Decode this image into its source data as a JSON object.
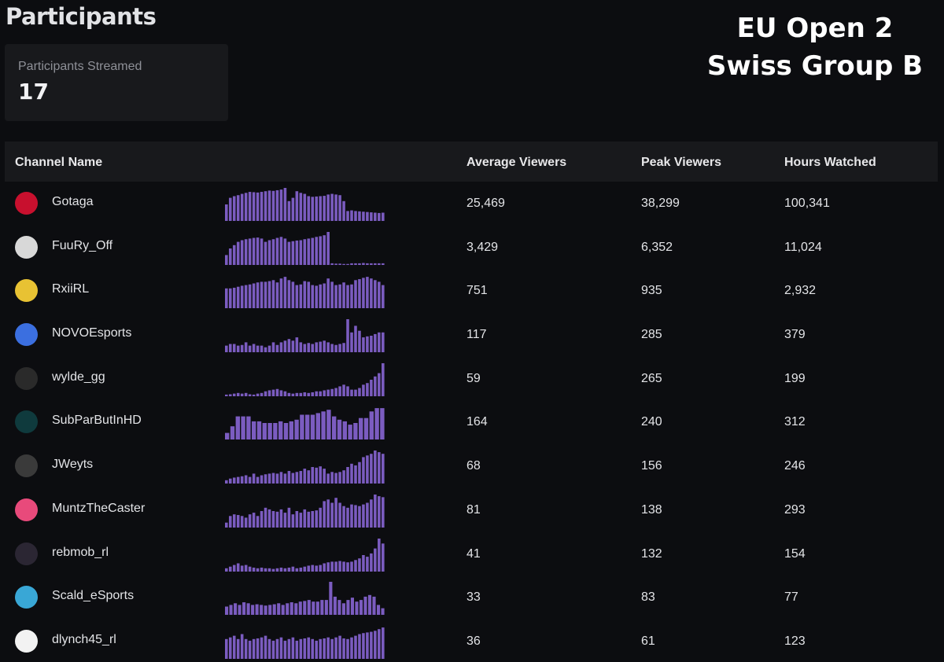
{
  "page_title": "Participants",
  "event": {
    "line1": "EU Open 2",
    "line2": "Swiss Group B"
  },
  "stat_card": {
    "label": "Participants Streamed",
    "value": "17"
  },
  "table": {
    "headers": {
      "channel": "Channel Name",
      "avg": "Average Viewers",
      "peak": "Peak Viewers",
      "hours": "Hours Watched"
    },
    "rows": [
      {
        "name": "Gotaga",
        "avg": "25,469",
        "peak": "38,299",
        "hours": "100,341",
        "avatar_color": "#c8102e",
        "trend": [
          0.5,
          0.7,
          0.75,
          0.78,
          0.82,
          0.85,
          0.88,
          0.87,
          0.86,
          0.88,
          0.9,
          0.92,
          0.91,
          0.93,
          0.95,
          1.0,
          0.6,
          0.7,
          0.9,
          0.85,
          0.82,
          0.75,
          0.73,
          0.74,
          0.75,
          0.76,
          0.8,
          0.82,
          0.8,
          0.78,
          0.6,
          0.3,
          0.32,
          0.3,
          0.29,
          0.28,
          0.27,
          0.26,
          0.25,
          0.24,
          0.25
        ]
      },
      {
        "name": "FuuRy_Off",
        "avg": "3,429",
        "peak": "6,352",
        "hours": "11,024",
        "avatar_color": "#d8d8d8",
        "trend": [
          0.3,
          0.5,
          0.6,
          0.7,
          0.75,
          0.78,
          0.8,
          0.82,
          0.83,
          0.8,
          0.7,
          0.75,
          0.78,
          0.82,
          0.85,
          0.8,
          0.7,
          0.72,
          0.74,
          0.75,
          0.78,
          0.8,
          0.82,
          0.85,
          0.87,
          0.9,
          1.0,
          0.05,
          0.04,
          0.04,
          0.03,
          0.03,
          0.05,
          0.05,
          0.05,
          0.06,
          0.05,
          0.05,
          0.05,
          0.05,
          0.05
        ]
      },
      {
        "name": "RxiiRL",
        "avg": "751",
        "peak": "935",
        "hours": "2,932",
        "avatar_color": "#e8c233",
        "trend": [
          0.6,
          0.6,
          0.62,
          0.65,
          0.68,
          0.7,
          0.72,
          0.75,
          0.78,
          0.8,
          0.8,
          0.82,
          0.85,
          0.78,
          0.9,
          0.95,
          0.85,
          0.8,
          0.7,
          0.72,
          0.82,
          0.8,
          0.7,
          0.68,
          0.72,
          0.75,
          0.9,
          0.8,
          0.7,
          0.72,
          0.78,
          0.7,
          0.72,
          0.85,
          0.88,
          0.92,
          0.95,
          0.9,
          0.85,
          0.8,
          0.7
        ]
      },
      {
        "name": "NOVOEsports",
        "avg": "117",
        "peak": "285",
        "hours": "379",
        "avatar_color": "#3b6fe0",
        "trend": [
          0.2,
          0.25,
          0.25,
          0.2,
          0.22,
          0.3,
          0.2,
          0.25,
          0.2,
          0.2,
          0.15,
          0.2,
          0.3,
          0.22,
          0.3,
          0.35,
          0.4,
          0.35,
          0.45,
          0.3,
          0.25,
          0.28,
          0.25,
          0.3,
          0.32,
          0.35,
          0.3,
          0.25,
          0.22,
          0.25,
          0.28,
          1.0,
          0.6,
          0.8,
          0.65,
          0.45,
          0.48,
          0.5,
          0.55,
          0.6,
          0.6
        ]
      },
      {
        "name": "wylde_gg",
        "avg": "59",
        "peak": "265",
        "hours": "199",
        "avatar_color": "#2a2a2a",
        "trend": [
          0.05,
          0.06,
          0.08,
          0.1,
          0.08,
          0.1,
          0.06,
          0.05,
          0.08,
          0.1,
          0.15,
          0.18,
          0.2,
          0.22,
          0.18,
          0.15,
          0.1,
          0.08,
          0.1,
          0.1,
          0.12,
          0.1,
          0.12,
          0.15,
          0.15,
          0.18,
          0.2,
          0.22,
          0.25,
          0.3,
          0.35,
          0.3,
          0.2,
          0.2,
          0.25,
          0.35,
          0.4,
          0.5,
          0.6,
          0.7,
          1.0
        ]
      },
      {
        "name": "SubParButInHD",
        "avg": "164",
        "peak": "240",
        "hours": "312",
        "avatar_color": "#0f3a3d",
        "trend": [
          0.2,
          0.4,
          0.7,
          0.7,
          0.7,
          0.55,
          0.55,
          0.5,
          0.5,
          0.5,
          0.55,
          0.5,
          0.55,
          0.6,
          0.75,
          0.75,
          0.75,
          0.8,
          0.85,
          0.9,
          0.7,
          0.6,
          0.55,
          0.45,
          0.5,
          0.65,
          0.65,
          0.85,
          0.95,
          0.95
        ]
      },
      {
        "name": "JWeyts",
        "avg": "68",
        "peak": "156",
        "hours": "246",
        "avatar_color": "#3a3a3a",
        "trend": [
          0.1,
          0.15,
          0.18,
          0.2,
          0.22,
          0.25,
          0.2,
          0.3,
          0.2,
          0.25,
          0.28,
          0.3,
          0.32,
          0.3,
          0.35,
          0.3,
          0.38,
          0.32,
          0.35,
          0.38,
          0.45,
          0.4,
          0.5,
          0.48,
          0.52,
          0.45,
          0.3,
          0.35,
          0.32,
          0.35,
          0.4,
          0.5,
          0.6,
          0.55,
          0.65,
          0.8,
          0.85,
          0.9,
          1.0,
          0.95,
          0.9
        ]
      },
      {
        "name": "MuntzTheCaster",
        "avg": "81",
        "peak": "138",
        "hours": "293",
        "avatar_color": "#e84a7b",
        "trend": [
          0.15,
          0.35,
          0.4,
          0.38,
          0.35,
          0.3,
          0.4,
          0.45,
          0.35,
          0.5,
          0.6,
          0.55,
          0.5,
          0.48,
          0.55,
          0.45,
          0.6,
          0.4,
          0.5,
          0.45,
          0.55,
          0.48,
          0.5,
          0.52,
          0.6,
          0.8,
          0.85,
          0.75,
          0.9,
          0.75,
          0.65,
          0.6,
          0.7,
          0.68,
          0.65,
          0.7,
          0.75,
          0.85,
          1.0,
          0.95,
          0.92
        ]
      },
      {
        "name": "rebmob_rl",
        "avg": "41",
        "peak": "132",
        "hours": "154",
        "avatar_color": "#2b2633",
        "trend": [
          0.1,
          0.15,
          0.2,
          0.25,
          0.18,
          0.2,
          0.15,
          0.12,
          0.1,
          0.12,
          0.1,
          0.1,
          0.08,
          0.1,
          0.12,
          0.1,
          0.12,
          0.15,
          0.1,
          0.12,
          0.15,
          0.18,
          0.2,
          0.18,
          0.2,
          0.25,
          0.28,
          0.3,
          0.3,
          0.32,
          0.3,
          0.28,
          0.3,
          0.35,
          0.4,
          0.5,
          0.45,
          0.55,
          0.7,
          1.0,
          0.85
        ]
      },
      {
        "name": "Scald_eSports",
        "avg": "33",
        "peak": "83",
        "hours": "77",
        "avatar_color": "#39a7d6",
        "trend": [
          0.25,
          0.3,
          0.35,
          0.3,
          0.38,
          0.35,
          0.3,
          0.32,
          0.3,
          0.28,
          0.3,
          0.32,
          0.35,
          0.3,
          0.35,
          0.38,
          0.35,
          0.4,
          0.42,
          0.45,
          0.4,
          0.4,
          0.45,
          0.45,
          1.0,
          0.55,
          0.45,
          0.35,
          0.45,
          0.52,
          0.4,
          0.45,
          0.55,
          0.6,
          0.55,
          0.3,
          0.2
        ]
      },
      {
        "name": "dlynch45_rl",
        "avg": "36",
        "peak": "61",
        "hours": "123",
        "avatar_color": "#f2f2f2",
        "trend": [
          0.6,
          0.65,
          0.7,
          0.6,
          0.75,
          0.6,
          0.55,
          0.6,
          0.62,
          0.65,
          0.7,
          0.6,
          0.55,
          0.6,
          0.65,
          0.55,
          0.6,
          0.65,
          0.55,
          0.6,
          0.62,
          0.65,
          0.6,
          0.55,
          0.6,
          0.62,
          0.65,
          0.6,
          0.65,
          0.7,
          0.62,
          0.6,
          0.65,
          0.7,
          0.75,
          0.78,
          0.8,
          0.82,
          0.85,
          0.9,
          0.95
        ]
      }
    ]
  }
}
